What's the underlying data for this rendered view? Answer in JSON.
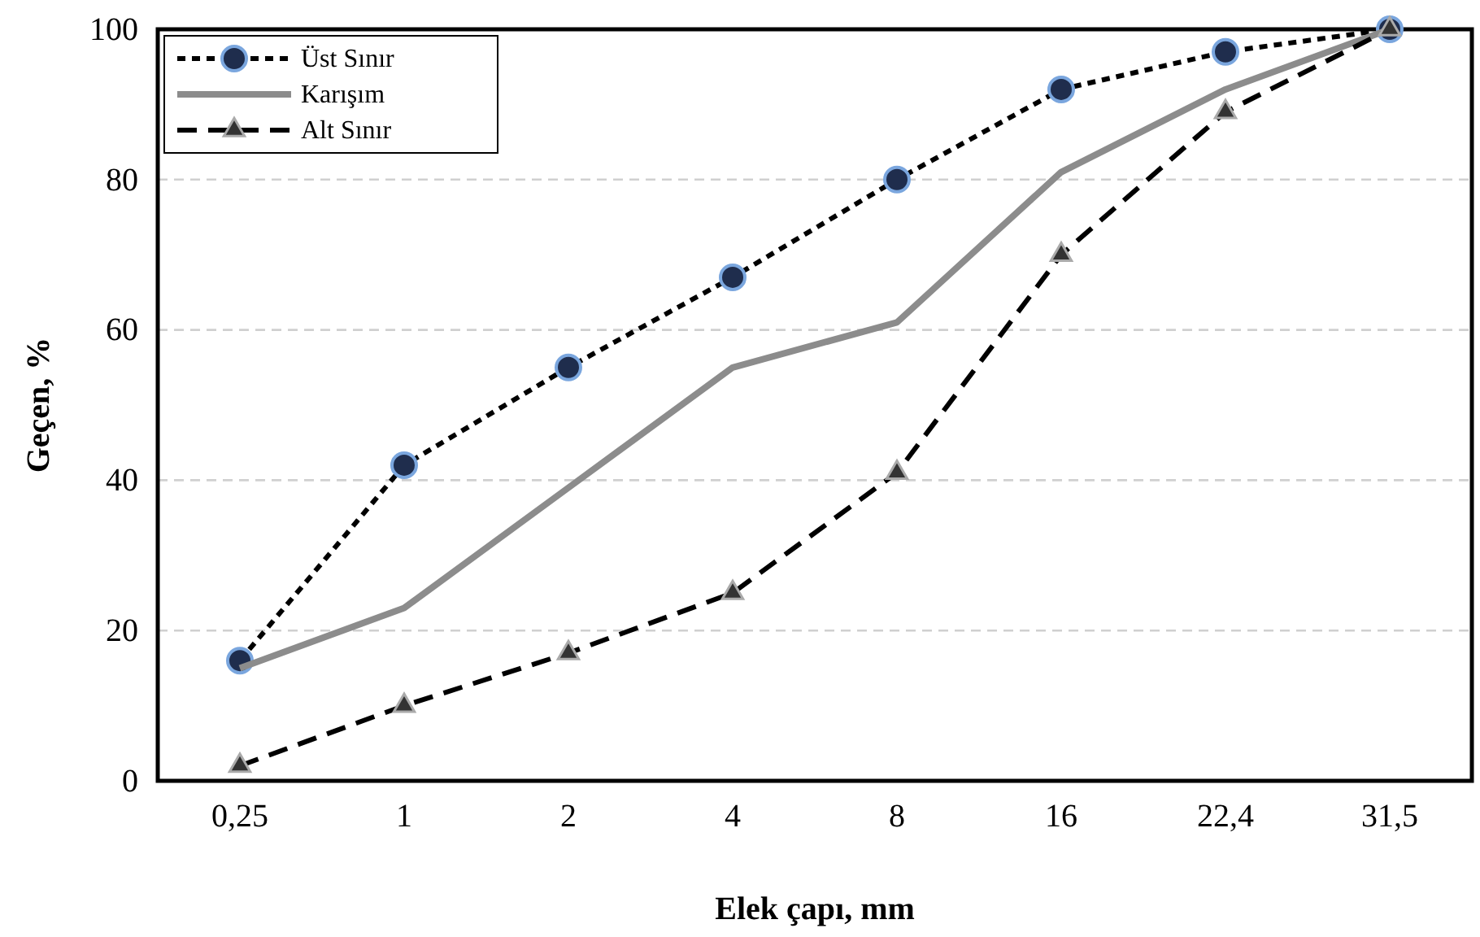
{
  "chart_data": {
    "type": "line",
    "xlabel": "Elek çapı, mm",
    "ylabel": "Geçen, %",
    "categories": [
      "0,25",
      "1",
      "2",
      "4",
      "8",
      "16",
      "22,4",
      "31,5"
    ],
    "series": [
      {
        "name": "Üst Sınır",
        "color": "#000000",
        "marker": "circle",
        "line_style": "dotted",
        "values": [
          16,
          42,
          55,
          67,
          80,
          92,
          97,
          100
        ]
      },
      {
        "name": "Karışım",
        "color": "#8c8c8c",
        "marker": "none",
        "line_style": "solid",
        "values": [
          15,
          23,
          39,
          55,
          61,
          81,
          92,
          100
        ]
      },
      {
        "name": "Alt Sınır",
        "color": "#000000",
        "marker": "triangle",
        "line_style": "dashed",
        "values": [
          2,
          10,
          17,
          25,
          41,
          70,
          89,
          100
        ]
      }
    ],
    "ylim": [
      0,
      100
    ],
    "yticks": [
      0,
      20,
      40,
      60,
      80,
      100
    ],
    "grid": "y",
    "legend": "top left"
  }
}
